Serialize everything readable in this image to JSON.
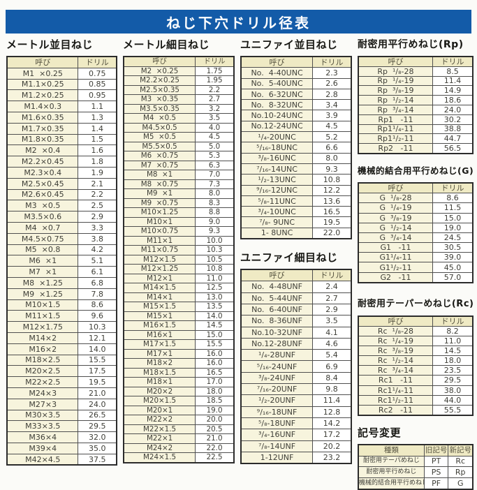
{
  "title": "ねじ下穴ドリル径表",
  "accent_color": "#135ba8",
  "corner_mark": "‥",
  "tables": [
    {
      "title": "メートル並目ねじ",
      "headers": [
        "呼び",
        "ドリル"
      ],
      "rows": [
        [
          "M1  ×0.25",
          "0.75"
        ],
        [
          "M1.1×0.25",
          "0.85"
        ],
        [
          "M1.2×0.25",
          "0.95"
        ],
        [
          "M1.4×0.3",
          "1.1"
        ],
        [
          "M1.6×0.35",
          "1.3"
        ],
        [
          "M1.7×0.35",
          "1.4"
        ],
        [
          "M1.8×0.35",
          "1.5"
        ],
        [
          "M2  ×0.4",
          "1.6"
        ],
        [
          "M2.2×0.45",
          "1.8"
        ],
        [
          "M2.3×0.4",
          "1.9"
        ],
        [
          "M2.5×0.45",
          "2.1"
        ],
        [
          "M2.6×0.45",
          "2.2"
        ],
        [
          "M3  ×0.5",
          "2.5"
        ],
        [
          "M3.5×0.6",
          "2.9"
        ],
        [
          "M4  ×0.7",
          "3.3"
        ],
        [
          "M4.5×0.75",
          "3.8"
        ],
        [
          "M5  ×0.8",
          "4.2"
        ],
        [
          "M6  ×1",
          "5.1"
        ],
        [
          "M7  ×1",
          "6.1"
        ],
        [
          "M8  ×1.25",
          "6.8"
        ],
        [
          "M9  ×1.25",
          "7.8"
        ],
        [
          "M10×1.5",
          "8.6"
        ],
        [
          "M11×1.5",
          "9.6"
        ],
        [
          "M12×1.75",
          "10.3"
        ],
        [
          "M14×2",
          "12.1"
        ],
        [
          "M16×2",
          "14.0"
        ],
        [
          "M18×2.5",
          "15.5"
        ],
        [
          "M20×2.5",
          "17.5"
        ],
        [
          "M22×2.5",
          "19.5"
        ],
        [
          "M24×3",
          "21.0"
        ],
        [
          "M27×3",
          "24.0"
        ],
        [
          "M30×3.5",
          "26.5"
        ],
        [
          "M33×3.5",
          "29.5"
        ],
        [
          "M36×4",
          "32.0"
        ],
        [
          "M39×4",
          "35.0"
        ],
        [
          "M42×4.5",
          "37.5"
        ]
      ]
    },
    {
      "title": "メートル細目ねじ",
      "headers": [
        "呼び",
        "ドリル"
      ],
      "rows": [
        [
          "M2  ×0.25",
          "1.75"
        ],
        [
          "M2.2×0.25",
          "1.95"
        ],
        [
          "M2.5×0.35",
          "2.2"
        ],
        [
          "M3  ×0.35",
          "2.7"
        ],
        [
          "M3.5×0.35",
          "3.2"
        ],
        [
          "M4  ×0.5",
          "3.5"
        ],
        [
          "M4.5×0.5",
          "4.0"
        ],
        [
          "M5  ×0.5",
          "4.5"
        ],
        [
          "M5.5×0.5",
          "5.0"
        ],
        [
          "M6  ×0.75",
          "5.3"
        ],
        [
          "M7  ×0.75",
          "6.3"
        ],
        [
          "M8  ×1",
          "7.0"
        ],
        [
          "M8  ×0.75",
          "7.3"
        ],
        [
          "M9  ×1",
          "8.0"
        ],
        [
          "M9  ×0.75",
          "8.3"
        ],
        [
          "M10×1.25",
          "8.8"
        ],
        [
          "M10×1",
          "9.0"
        ],
        [
          "M10×0.75",
          "9.3"
        ],
        [
          "M11×1",
          "10.0"
        ],
        [
          "M11×0.75",
          "10.3"
        ],
        [
          "M12×1.5",
          "10.5"
        ],
        [
          "M12×1.25",
          "10.8"
        ],
        [
          "M12×1",
          "11.0"
        ],
        [
          "M14×1.5",
          "12.5"
        ],
        [
          "M14×1",
          "13.0"
        ],
        [
          "M15×1.5",
          "13.5"
        ],
        [
          "M15×1",
          "14.0"
        ],
        [
          "M16×1.5",
          "14.5"
        ],
        [
          "M16×1",
          "15.0"
        ],
        [
          "M17×1.5",
          "15.5"
        ],
        [
          "M17×1",
          "16.0"
        ],
        [
          "M18×2",
          "16.0"
        ],
        [
          "M18×1.5",
          "16.5"
        ],
        [
          "M18×1",
          "17.0"
        ],
        [
          "M20×2",
          "18.0"
        ],
        [
          "M20×1.5",
          "18.5"
        ],
        [
          "M20×1",
          "19.0"
        ],
        [
          "M22×2",
          "20.0"
        ],
        [
          "M22×1.5",
          "20.5"
        ],
        [
          "M22×1",
          "21.0"
        ],
        [
          "M24×2",
          "22.0"
        ],
        [
          "M24×1.5",
          "22.5"
        ]
      ]
    },
    {
      "title": "ユニファイ並目ねじ",
      "headers": [
        "呼び",
        "ドリル"
      ],
      "rows": [
        [
          "No.  4-40UNC",
          "2.3"
        ],
        [
          "No.  5-40UNC",
          "2.6"
        ],
        [
          "No.  6-32UNC",
          "2.8"
        ],
        [
          "No.  8-32UNC",
          "3.4"
        ],
        [
          "No.10-24UNC",
          "3.9"
        ],
        [
          "No.12-24UNC",
          "4.5"
        ],
        [
          "¹/₄-20UNC",
          "5.2"
        ],
        [
          "⁵/₁₆-18UNC",
          "6.6"
        ],
        [
          "³/₈-16UNC",
          "8.0"
        ],
        [
          "⁷/₁₆-14UNC",
          "9.3"
        ],
        [
          "¹/₂-13UNC",
          "10.8"
        ],
        [
          "⁹/₁₆-12UNC",
          "12.2"
        ],
        [
          "⁵/₈-11UNC",
          "13.6"
        ],
        [
          "³/₄-10UNC",
          "16.5"
        ],
        [
          "⁷/₈- 9UNC",
          "19.5"
        ],
        [
          "1- 8UNC",
          "22.0"
        ]
      ]
    },
    {
      "title": "ユニファイ細目ねじ",
      "headers": [
        "呼び",
        "ドリル"
      ],
      "rows": [
        [
          "No.  4-48UNF",
          "2.4"
        ],
        [
          "No.  5-44UNF",
          "2.7"
        ],
        [
          "No.  6-40UNF",
          "2.9"
        ],
        [
          "No.  8-36UNF",
          "3.5"
        ],
        [
          "No.10-32UNF",
          "4.1"
        ],
        [
          "No.12-28UNF",
          "4.6"
        ],
        [
          "¹/₄-28UNF",
          "5.4"
        ],
        [
          "⁵/₁₆-24UNF",
          "6.9"
        ],
        [
          "³/₈-24UNF",
          "8.4"
        ],
        [
          "⁷/₁₆-20UNF",
          "9.8"
        ],
        [
          "¹/₂-20UNF",
          "11.4"
        ],
        [
          "⁹/₁₆-18UNF",
          "12.8"
        ],
        [
          "⁵/₈-18UNF",
          "14.2"
        ],
        [
          "³/₄-16UNF",
          "17.2"
        ],
        [
          "⁷/₈-14UNF",
          "20.2"
        ],
        [
          "1-12UNF",
          "23.2"
        ]
      ]
    },
    {
      "title": "耐密用平行めねじ(Rp)",
      "headers": [
        "呼び",
        "ドリル"
      ],
      "rows": [
        [
          "Rp  ¹/₈-28",
          "8.5"
        ],
        [
          "Rp  ¹/₄-19",
          "11.4"
        ],
        [
          "Rp  ³/₈-19",
          "14.9"
        ],
        [
          "Rp  ¹/₂-14",
          "18.6"
        ],
        [
          "Rp  ³/₄-14",
          "24.0"
        ],
        [
          "Rp1   -11",
          "30.2"
        ],
        [
          "Rp1¹/₄-11",
          "38.8"
        ],
        [
          "Rp1¹/₂-11",
          "44.7"
        ],
        [
          "Rp2   -11",
          "56.5"
        ]
      ]
    },
    {
      "title": "機械的結合用平行めねじ(G)",
      "headers": [
        "呼び",
        "ドリル"
      ],
      "rows": [
        [
          "G  ¹/₈-28",
          "8.6"
        ],
        [
          "G  ¹/₄-19",
          "11.5"
        ],
        [
          "G  ³/₈-19",
          "15.0"
        ],
        [
          "G  ¹/₂-14",
          "19.0"
        ],
        [
          "G  ³/₄-14",
          "24.5"
        ],
        [
          "G1   -11",
          "30.5"
        ],
        [
          "G1¹/₄-11",
          "39.0"
        ],
        [
          "G1¹/₂-11",
          "45.0"
        ],
        [
          "G2   -11",
          "57.0"
        ]
      ]
    },
    {
      "title": "耐密用テーパーめねじ(Rc)",
      "headers": [
        "呼び",
        "ドリル"
      ],
      "rows": [
        [
          "Rc  ¹/₈-28",
          "8.2"
        ],
        [
          "Rc  ¹/₄-19",
          "11.0"
        ],
        [
          "Rc  ³/₈-19",
          "14.5"
        ],
        [
          "Rc  ¹/₂-14",
          "18.0"
        ],
        [
          "Rc  ³/₄-14",
          "23.5"
        ],
        [
          "Rc1   -11",
          "29.5"
        ],
        [
          "Rc1¹/₄-11",
          "38.0"
        ],
        [
          "Rc1¹/₂-11",
          "44.0"
        ],
        [
          "Rc2   -11",
          "55.5"
        ]
      ]
    },
    {
      "title": "記号変更",
      "headers": [
        "種類",
        "旧記号",
        "新記号"
      ],
      "rows": [
        [
          "耐密用テーパめねじ",
          "PT",
          "Rc"
        ],
        [
          "耐密用平行めねじ",
          "PS",
          "Rp"
        ],
        [
          "機械的結合用平行めねじ",
          "PF",
          "G"
        ]
      ]
    }
  ]
}
